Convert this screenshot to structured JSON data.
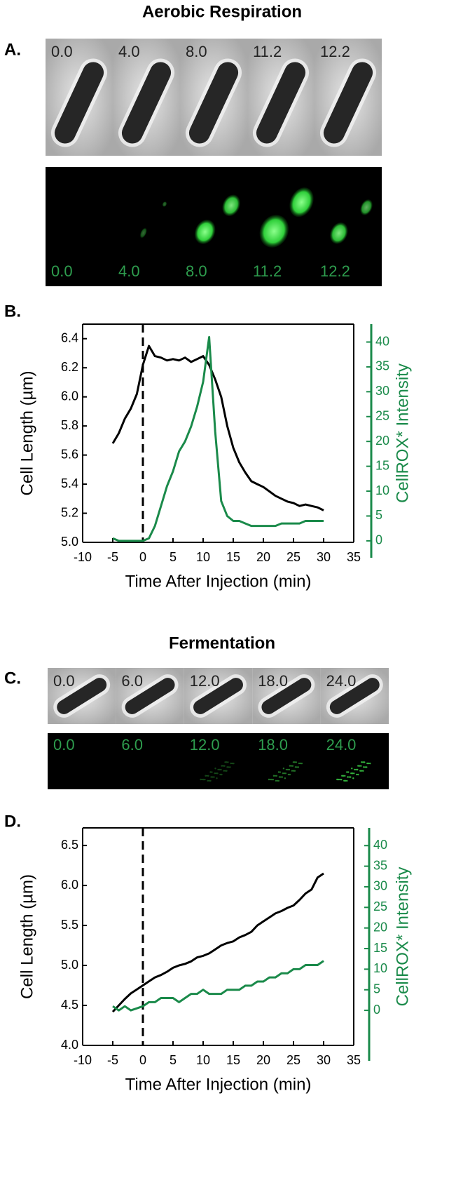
{
  "figure": {
    "sections": [
      {
        "title": "Aerobic Respiration",
        "image_panel": {
          "label": "A.",
          "phase_times": [
            "0.0",
            "4.0",
            "8.0",
            "11.2",
            "12.2"
          ],
          "fluorescence_times": [
            "0.0",
            "4.0",
            "8.0",
            "11.2",
            "12.2"
          ]
        },
        "chart_label": "B."
      },
      {
        "title": "Fermentation",
        "image_panel": {
          "label": "C.",
          "phase_times": [
            "0.0",
            "6.0",
            "12.0",
            "18.0",
            "24.0"
          ],
          "fluorescence_times": [
            "0.0",
            "6.0",
            "12.0",
            "18.0",
            "24.0"
          ]
        },
        "chart_label": "D."
      }
    ]
  },
  "chart_data": [
    {
      "type": "line",
      "xlabel": "Time After Injection (min)",
      "ylabel": "Cell Length (µm)",
      "y2label": "CellROX* Intensity",
      "x": [
        -5,
        -4,
        -3,
        -2,
        -1,
        0,
        1,
        2,
        3,
        4,
        5,
        6,
        7,
        8,
        9,
        10,
        11,
        12,
        13,
        14,
        15,
        16,
        17,
        18,
        19,
        20,
        21,
        22,
        23,
        24,
        25,
        26,
        27,
        28,
        29,
        30
      ],
      "series": [
        {
          "color": "#000000",
          "axis": "y",
          "values": [
            5.68,
            5.75,
            5.85,
            5.92,
            6.02,
            6.22,
            6.35,
            6.28,
            6.27,
            6.25,
            6.26,
            6.25,
            6.27,
            6.24,
            6.26,
            6.28,
            6.22,
            6.12,
            6.0,
            5.8,
            5.65,
            5.55,
            5.48,
            5.42,
            5.4,
            5.38,
            5.35,
            5.32,
            5.3,
            5.28,
            5.27,
            5.25,
            5.26,
            5.25,
            5.24,
            5.22
          ]
        },
        {
          "color": "#1a8a4a",
          "axis": "y2",
          "values": [
            0.5,
            0,
            0,
            0,
            0,
            0,
            0.5,
            3,
            7,
            11,
            14,
            18,
            20,
            23,
            27,
            32,
            41,
            22,
            8,
            5,
            4,
            4,
            3.5,
            3,
            3,
            3,
            3,
            3,
            3.5,
            3.5,
            3.5,
            3.5,
            4,
            4,
            4,
            4
          ]
        }
      ],
      "xlim": [
        -10,
        35
      ],
      "xticks": [
        -10,
        -5,
        0,
        5,
        10,
        15,
        20,
        25,
        30,
        35
      ],
      "ylim": [
        5.0,
        6.5
      ],
      "yticks": [
        {
          "value": 5,
          "label": "5.0"
        },
        5.2,
        5.4,
        5.6,
        5.8,
        {
          "value": 6,
          "label": "6.0"
        },
        6.2,
        6.4
      ],
      "y2lim": [
        -0.3,
        43.6
      ],
      "y2ticks": [
        0,
        5,
        10,
        15,
        20,
        25,
        30,
        35,
        40
      ],
      "y2color": "#1a8a4a",
      "vline": 0
    },
    {
      "type": "line",
      "xlabel": "Time After Injection (min)",
      "ylabel": "Cell Length (µm)",
      "y2label": "CellROX* Intensity",
      "x": [
        -5,
        -4,
        -3,
        -2,
        -1,
        0,
        1,
        2,
        3,
        4,
        5,
        6,
        7,
        8,
        9,
        10,
        11,
        12,
        13,
        14,
        15,
        16,
        17,
        18,
        19,
        20,
        21,
        22,
        23,
        24,
        25,
        26,
        27,
        28,
        29,
        30
      ],
      "series": [
        {
          "color": "#000000",
          "axis": "y",
          "values": [
            4.42,
            4.5,
            4.58,
            4.65,
            4.7,
            4.75,
            4.8,
            4.85,
            4.88,
            4.92,
            4.97,
            5.0,
            5.02,
            5.05,
            5.1,
            5.12,
            5.15,
            5.2,
            5.25,
            5.28,
            5.3,
            5.35,
            5.38,
            5.42,
            5.5,
            5.55,
            5.6,
            5.65,
            5.68,
            5.72,
            5.75,
            5.82,
            5.9,
            5.95,
            6.1,
            6.15
          ]
        },
        {
          "color": "#1a8a4a",
          "axis": "y2",
          "values": [
            1,
            0,
            1,
            0,
            0.5,
            1,
            2,
            2,
            3,
            3,
            3,
            2,
            3,
            4,
            4,
            5,
            4,
            4,
            4,
            5,
            5,
            5,
            6,
            6,
            7,
            7,
            8,
            8,
            9,
            9,
            10,
            10,
            11,
            11,
            11,
            12
          ]
        }
      ],
      "xlim": [
        -10,
        35
      ],
      "xticks": [
        -10,
        -5,
        0,
        5,
        10,
        15,
        20,
        25,
        30,
        35
      ],
      "ylim": [
        4.0,
        6.72
      ],
      "yticks": [
        {
          "value": 4,
          "label": "4.0"
        },
        4.5,
        {
          "value": 5,
          "label": "5.0"
        },
        5.5,
        {
          "value": 6,
          "label": "6.0"
        },
        6.5
      ],
      "y2lim": [
        -8.5,
        44.3
      ],
      "y2ticks": [
        0,
        5,
        10,
        15,
        20,
        25,
        30,
        35,
        40
      ],
      "y2color": "#1a8a4a",
      "vline": 0
    }
  ]
}
